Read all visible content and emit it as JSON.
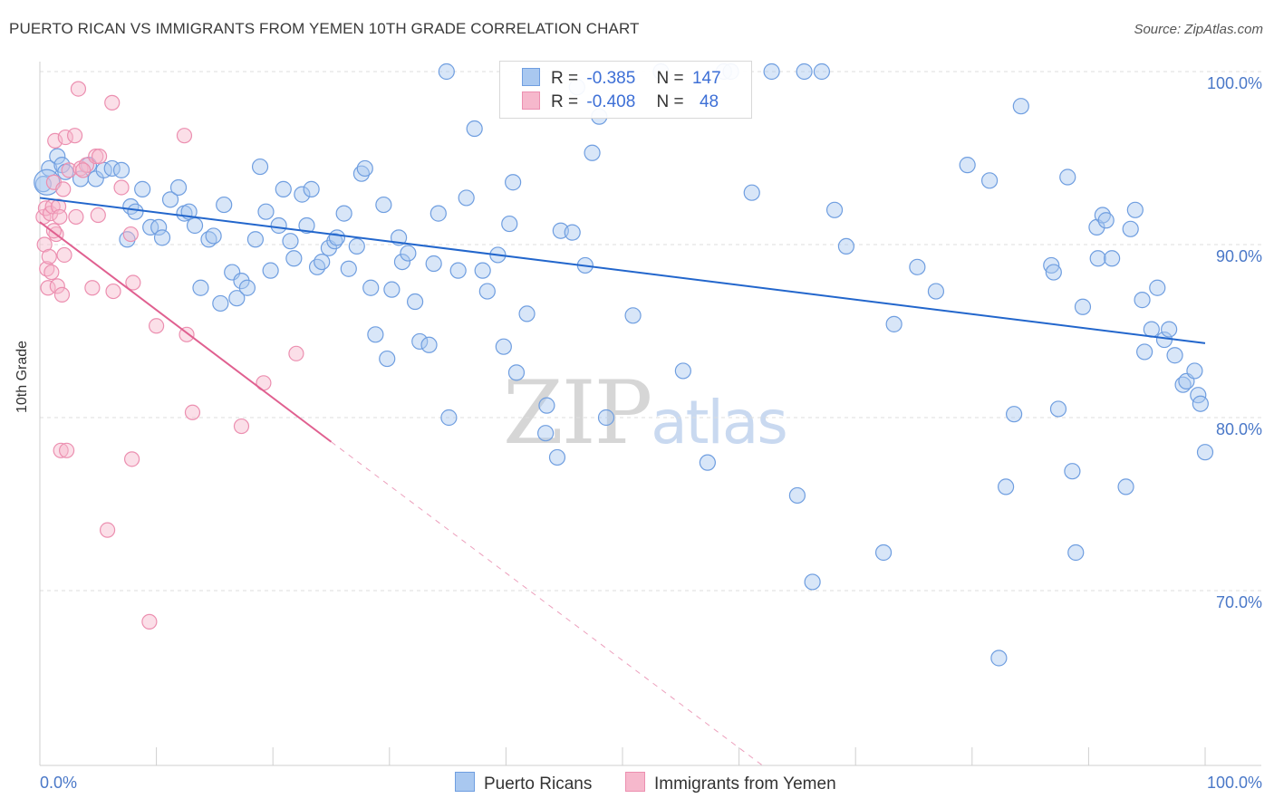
{
  "title": "PUERTO RICAN VS IMMIGRANTS FROM YEMEN 10TH GRADE CORRELATION CHART",
  "source": "Source: ZipAtlas.com",
  "watermark": {
    "zip": "ZIP",
    "atlas": "atlas"
  },
  "legend": {
    "row1": {
      "r_label": "R =",
      "r_value": "-0.385",
      "n_label": "N =",
      "n_value": "147"
    },
    "row2": {
      "r_label": "R =",
      "r_value": "-0.408",
      "n_label": "N =",
      "n_value": "48"
    }
  },
  "bottom_legend": {
    "series1": "Puerto Ricans",
    "series2": "Immigrants from Yemen"
  },
  "colors": {
    "blue_fill": "#a9c8f0",
    "blue_stroke": "#6f9ee0",
    "blue_line": "#2266cc",
    "pink_fill": "#f6b8cc",
    "pink_stroke": "#ec8fb0",
    "pink_line": "#e06090",
    "grid": "#dddddd"
  },
  "chart_data": {
    "type": "scatter",
    "title": "PUERTO RICAN VS IMMIGRANTS FROM YEMEN 10TH GRADE CORRELATION CHART",
    "xlabel": "",
    "ylabel": "10th Grade",
    "xlim": [
      0,
      100
    ],
    "ylim": [
      60,
      101
    ],
    "x_tick_labels": [
      "0.0%",
      "100.0%"
    ],
    "y_ticks": [
      70,
      80,
      90,
      100
    ],
    "y_tick_labels": [
      "70.0%",
      "80.0%",
      "90.0%",
      "100.0%"
    ],
    "grid": true,
    "legend_position": "top-center",
    "series": [
      {
        "name": "Puerto Ricans",
        "color": "#6f9ee0",
        "r": -0.385,
        "n": 147,
        "trend": {
          "x": [
            0,
            100
          ],
          "y": [
            92.7,
            84.3
          ]
        },
        "points": [
          [
            0.3,
            93.5
          ],
          [
            0.8,
            94.4
          ],
          [
            1.5,
            95.1
          ],
          [
            1.9,
            94.6
          ],
          [
            2.2,
            94.2
          ],
          [
            3.5,
            93.8
          ],
          [
            4.2,
            94.6
          ],
          [
            4.8,
            93.8
          ],
          [
            5.5,
            94.3
          ],
          [
            6.2,
            94.4
          ],
          [
            7.0,
            94.3
          ],
          [
            7.5,
            90.3
          ],
          [
            7.8,
            92.2
          ],
          [
            8.2,
            91.9
          ],
          [
            8.8,
            93.2
          ],
          [
            9.5,
            91.0
          ],
          [
            10.2,
            91.0
          ],
          [
            10.5,
            90.4
          ],
          [
            11.2,
            92.6
          ],
          [
            11.9,
            93.3
          ],
          [
            12.4,
            91.8
          ],
          [
            12.8,
            91.9
          ],
          [
            13.3,
            91.1
          ],
          [
            13.8,
            87.5
          ],
          [
            14.5,
            90.3
          ],
          [
            14.9,
            90.5
          ],
          [
            15.5,
            86.6
          ],
          [
            15.8,
            92.3
          ],
          [
            16.5,
            88.4
          ],
          [
            16.9,
            86.9
          ],
          [
            17.3,
            87.9
          ],
          [
            17.8,
            87.5
          ],
          [
            18.5,
            90.3
          ],
          [
            18.9,
            94.5
          ],
          [
            19.4,
            91.9
          ],
          [
            19.8,
            88.5
          ],
          [
            20.5,
            91.1
          ],
          [
            20.9,
            93.2
          ],
          [
            21.5,
            90.2
          ],
          [
            21.8,
            89.2
          ],
          [
            22.5,
            92.9
          ],
          [
            22.9,
            91.1
          ],
          [
            23.3,
            93.2
          ],
          [
            23.8,
            88.7
          ],
          [
            24.2,
            89.0
          ],
          [
            24.8,
            89.8
          ],
          [
            25.3,
            90.2
          ],
          [
            25.5,
            90.4
          ],
          [
            26.1,
            91.8
          ],
          [
            26.5,
            88.6
          ],
          [
            27.2,
            89.9
          ],
          [
            27.6,
            94.1
          ],
          [
            27.9,
            94.4
          ],
          [
            28.4,
            87.5
          ],
          [
            28.8,
            84.8
          ],
          [
            29.5,
            92.3
          ],
          [
            29.8,
            83.4
          ],
          [
            30.2,
            87.4
          ],
          [
            30.8,
            90.4
          ],
          [
            31.1,
            89.0
          ],
          [
            31.6,
            89.5
          ],
          [
            32.2,
            86.7
          ],
          [
            32.6,
            84.4
          ],
          [
            33.4,
            84.2
          ],
          [
            33.8,
            88.9
          ],
          [
            34.2,
            91.8
          ],
          [
            34.9,
            100.0
          ],
          [
            35.1,
            80.0
          ],
          [
            35.9,
            88.5
          ],
          [
            36.6,
            92.7
          ],
          [
            37.3,
            96.7
          ],
          [
            38.0,
            88.5
          ],
          [
            38.4,
            87.3
          ],
          [
            39.3,
            89.4
          ],
          [
            39.8,
            84.1
          ],
          [
            40.3,
            91.2
          ],
          [
            40.6,
            93.6
          ],
          [
            40.9,
            82.6
          ],
          [
            41.8,
            86.0
          ],
          [
            43.4,
            79.1
          ],
          [
            43.5,
            80.7
          ],
          [
            44.4,
            77.7
          ],
          [
            44.7,
            90.8
          ],
          [
            45.7,
            90.7
          ],
          [
            46.1,
            99.1
          ],
          [
            46.8,
            88.8
          ],
          [
            47.4,
            95.3
          ],
          [
            48.0,
            97.4
          ],
          [
            48.6,
            80.0
          ],
          [
            50.9,
            85.9
          ],
          [
            53.3,
            100.0
          ],
          [
            55.2,
            82.7
          ],
          [
            57.3,
            77.4
          ],
          [
            58.7,
            100.0
          ],
          [
            59.3,
            100.0
          ],
          [
            61.1,
            93.0
          ],
          [
            62.8,
            100.0
          ],
          [
            65.0,
            75.5
          ],
          [
            65.6,
            100.0
          ],
          [
            66.3,
            70.5
          ],
          [
            67.1,
            100.0
          ],
          [
            68.2,
            92.0
          ],
          [
            69.2,
            89.9
          ],
          [
            72.4,
            72.2
          ],
          [
            73.3,
            85.4
          ],
          [
            75.3,
            88.7
          ],
          [
            76.9,
            87.3
          ],
          [
            79.6,
            94.6
          ],
          [
            81.5,
            93.7
          ],
          [
            82.3,
            66.1
          ],
          [
            82.9,
            76.0
          ],
          [
            83.6,
            80.2
          ],
          [
            84.2,
            98.0
          ],
          [
            86.8,
            88.8
          ],
          [
            87.0,
            88.4
          ],
          [
            87.4,
            80.5
          ],
          [
            88.2,
            93.9
          ],
          [
            88.6,
            76.9
          ],
          [
            88.9,
            72.2
          ],
          [
            89.5,
            86.4
          ],
          [
            90.7,
            91.0
          ],
          [
            90.8,
            89.2
          ],
          [
            91.2,
            91.7
          ],
          [
            91.5,
            91.4
          ],
          [
            92.0,
            89.2
          ],
          [
            93.2,
            76.0
          ],
          [
            93.6,
            90.9
          ],
          [
            94.0,
            92.0
          ],
          [
            94.6,
            86.8
          ],
          [
            94.8,
            83.8
          ],
          [
            95.4,
            85.1
          ],
          [
            95.9,
            87.5
          ],
          [
            96.5,
            84.5
          ],
          [
            96.9,
            85.1
          ],
          [
            97.4,
            83.6
          ],
          [
            98.1,
            81.9
          ],
          [
            98.4,
            82.1
          ],
          [
            99.1,
            82.7
          ],
          [
            99.4,
            81.3
          ],
          [
            99.6,
            80.8
          ],
          [
            100.0,
            78.0
          ]
        ]
      },
      {
        "name": "Immigrants from Yemen",
        "color": "#ec8fb0",
        "r": -0.408,
        "n": 48,
        "trend": {
          "x": [
            0,
            25
          ],
          "y": [
            91.3,
            78.6
          ]
        },
        "trend_dashed": {
          "x": [
            25,
            62
          ],
          "y": [
            78.6,
            59.9
          ]
        },
        "points": [
          [
            0.3,
            91.6
          ],
          [
            0.4,
            90.0
          ],
          [
            0.5,
            92.1
          ],
          [
            0.6,
            88.6
          ],
          [
            0.7,
            87.5
          ],
          [
            0.8,
            89.3
          ],
          [
            0.9,
            91.8
          ],
          [
            1.0,
            88.4
          ],
          [
            1.1,
            92.2
          ],
          [
            1.2,
            93.6
          ],
          [
            1.3,
            96.0
          ],
          [
            1.4,
            90.6
          ],
          [
            1.5,
            87.6
          ],
          [
            1.6,
            92.2
          ],
          [
            1.7,
            91.6
          ],
          [
            1.8,
            78.1
          ],
          [
            1.9,
            87.1
          ],
          [
            2.0,
            93.2
          ],
          [
            2.1,
            89.4
          ],
          [
            2.2,
            96.2
          ],
          [
            2.3,
            78.1
          ],
          [
            2.5,
            94.3
          ],
          [
            3.0,
            96.3
          ],
          [
            3.1,
            91.6
          ],
          [
            3.3,
            99.0
          ],
          [
            3.5,
            94.4
          ],
          [
            4.0,
            94.6
          ],
          [
            4.5,
            87.5
          ],
          [
            4.8,
            95.1
          ],
          [
            5.1,
            95.1
          ],
          [
            5.8,
            73.5
          ],
          [
            6.2,
            98.2
          ],
          [
            6.3,
            87.3
          ],
          [
            7.0,
            93.3
          ],
          [
            7.8,
            90.6
          ],
          [
            7.9,
            77.6
          ],
          [
            8.0,
            87.8
          ],
          [
            9.4,
            68.2
          ],
          [
            10.0,
            85.3
          ],
          [
            12.4,
            96.3
          ],
          [
            12.6,
            84.8
          ],
          [
            13.1,
            80.3
          ],
          [
            17.3,
            79.5
          ],
          [
            19.2,
            82.0
          ],
          [
            22.0,
            83.7
          ],
          [
            5.0,
            91.7
          ],
          [
            3.7,
            94.3
          ],
          [
            1.2,
            90.8
          ]
        ]
      }
    ]
  }
}
